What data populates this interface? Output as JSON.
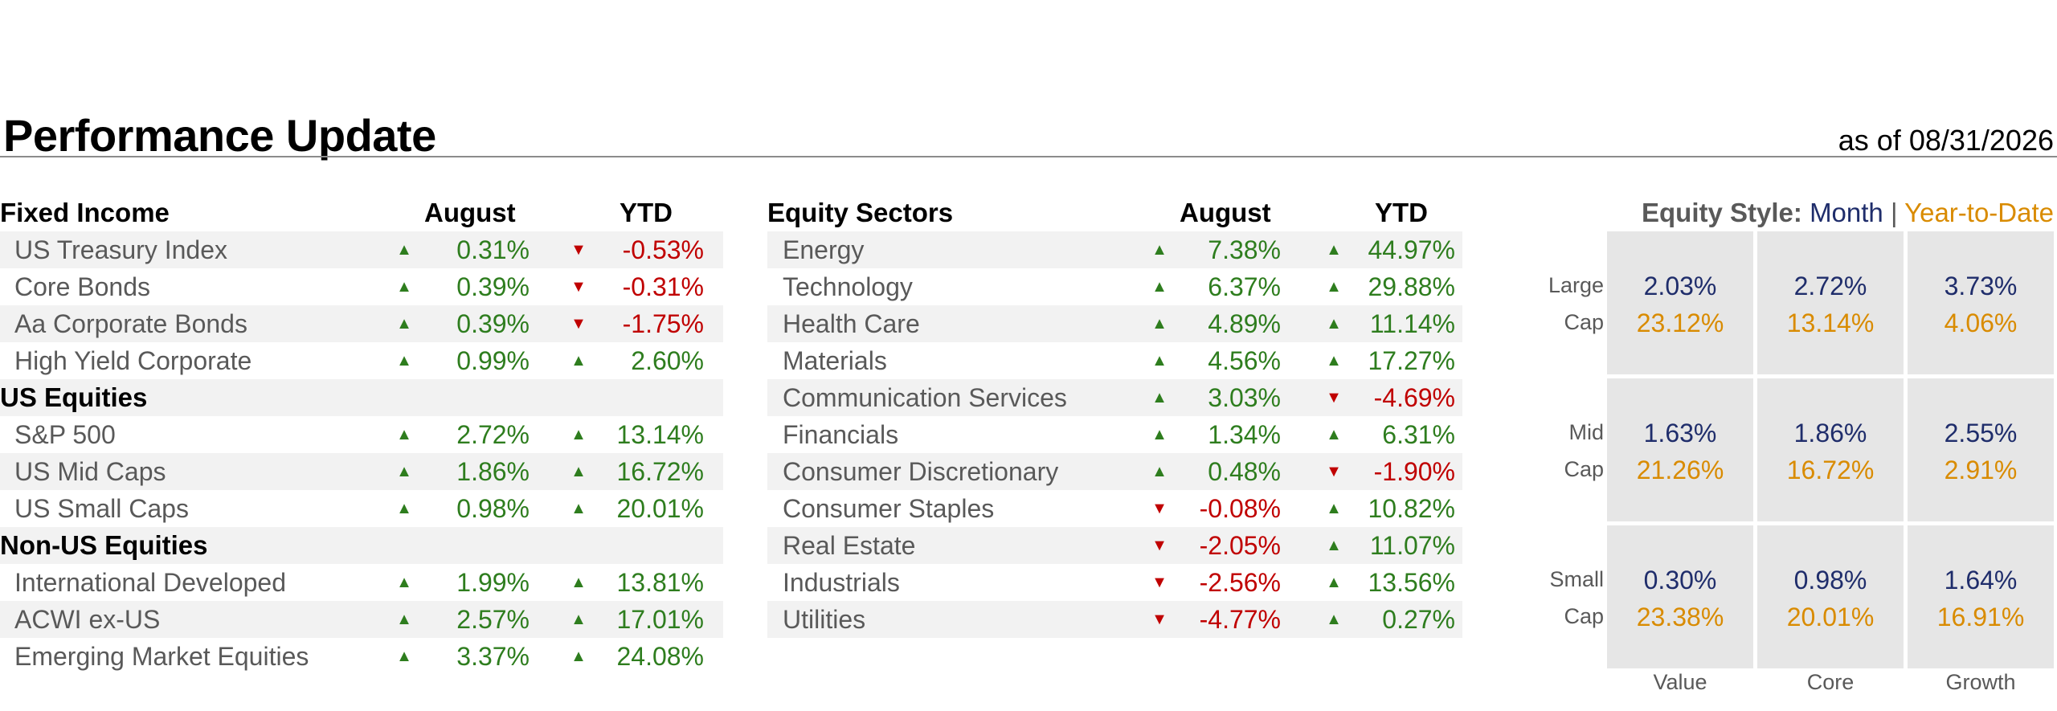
{
  "header": {
    "title": "Performance Update",
    "as_of": "as of 08/31/2026"
  },
  "fixed_income": {
    "title": "Fixed Income",
    "col_august": "August",
    "col_ytd": "YTD",
    "rows": [
      {
        "label": "US Treasury Index",
        "aug": "0.31%",
        "aug_dir": "▲",
        "ytd": "-0.53%",
        "ytd_dir": "▼"
      },
      {
        "label": "Core Bonds",
        "aug": "0.39%",
        "aug_dir": "▲",
        "ytd": "-0.31%",
        "ytd_dir": "▼"
      },
      {
        "label": "Aa Corporate Bonds",
        "aug": "0.39%",
        "aug_dir": "▲",
        "ytd": "-1.75%",
        "ytd_dir": "▼"
      },
      {
        "label": "High Yield Corporate",
        "aug": "0.99%",
        "aug_dir": "▲",
        "ytd": "2.60%",
        "ytd_dir": "▲"
      }
    ],
    "us_equities_title": "US Equities",
    "us_equities": [
      {
        "label": "S&P 500",
        "aug": "2.72%",
        "aug_dir": "▲",
        "ytd": "13.14%",
        "ytd_dir": "▲"
      },
      {
        "label": "US Mid Caps",
        "aug": "1.86%",
        "aug_dir": "▲",
        "ytd": "16.72%",
        "ytd_dir": "▲"
      },
      {
        "label": "US Small Caps",
        "aug": "0.98%",
        "aug_dir": "▲",
        "ytd": "20.01%",
        "ytd_dir": "▲"
      }
    ],
    "non_us_title": "Non-US Equities",
    "non_us": [
      {
        "label": "International Developed",
        "aug": "1.99%",
        "aug_dir": "▲",
        "ytd": "13.81%",
        "ytd_dir": "▲"
      },
      {
        "label": "ACWI ex-US",
        "aug": "2.57%",
        "aug_dir": "▲",
        "ytd": "17.01%",
        "ytd_dir": "▲"
      },
      {
        "label": "Emerging Market Equities",
        "aug": "3.37%",
        "aug_dir": "▲",
        "ytd": "24.08%",
        "ytd_dir": "▲"
      }
    ]
  },
  "equity_sectors": {
    "title": "Equity Sectors",
    "col_august": "August",
    "col_ytd": "YTD",
    "rows": [
      {
        "label": "Energy",
        "aug": "7.38%",
        "aug_dir": "▲",
        "ytd": "44.97%",
        "ytd_dir": "▲"
      },
      {
        "label": "Technology",
        "aug": "6.37%",
        "aug_dir": "▲",
        "ytd": "29.88%",
        "ytd_dir": "▲"
      },
      {
        "label": "Health Care",
        "aug": "4.89%",
        "aug_dir": "▲",
        "ytd": "11.14%",
        "ytd_dir": "▲"
      },
      {
        "label": "Materials",
        "aug": "4.56%",
        "aug_dir": "▲",
        "ytd": "17.27%",
        "ytd_dir": "▲"
      },
      {
        "label": "Communication Services",
        "aug": "3.03%",
        "aug_dir": "▲",
        "ytd": "-4.69%",
        "ytd_dir": "▼"
      },
      {
        "label": "Financials",
        "aug": "1.34%",
        "aug_dir": "▲",
        "ytd": "6.31%",
        "ytd_dir": "▲"
      },
      {
        "label": "Consumer Discretionary",
        "aug": "0.48%",
        "aug_dir": "▲",
        "ytd": "-1.90%",
        "ytd_dir": "▼"
      },
      {
        "label": "Consumer Staples",
        "aug": "-0.08%",
        "aug_dir": "▼",
        "ytd": "10.82%",
        "ytd_dir": "▲"
      },
      {
        "label": "Real Estate",
        "aug": "-2.05%",
        "aug_dir": "▼",
        "ytd": "11.07%",
        "ytd_dir": "▲"
      },
      {
        "label": "Industrials",
        "aug": "-2.56%",
        "aug_dir": "▼",
        "ytd": "13.56%",
        "ytd_dir": "▲"
      },
      {
        "label": "Utilities",
        "aug": "-4.77%",
        "aug_dir": "▼",
        "ytd": "0.27%",
        "ytd_dir": "▲"
      }
    ]
  },
  "equity_style": {
    "label": "Equity Style:",
    "month_label": "Month",
    "separator": "|",
    "ytd_label": "Year-to-Date",
    "row_labels": [
      {
        "top": "Large",
        "bottom": "Cap"
      },
      {
        "top": "Mid",
        "bottom": "Cap"
      },
      {
        "top": "Small",
        "bottom": "Cap"
      }
    ],
    "col_labels": [
      "Value",
      "Core",
      "Growth"
    ],
    "cells": [
      [
        {
          "month": "2.03%",
          "ytd": "23.12%"
        },
        {
          "month": "2.72%",
          "ytd": "13.14%"
        },
        {
          "month": "3.73%",
          "ytd": "4.06%"
        }
      ],
      [
        {
          "month": "1.63%",
          "ytd": "21.26%"
        },
        {
          "month": "1.86%",
          "ytd": "16.72%"
        },
        {
          "month": "2.55%",
          "ytd": "2.91%"
        }
      ],
      [
        {
          "month": "0.30%",
          "ytd": "23.38%"
        },
        {
          "month": "0.98%",
          "ytd": "20.01%"
        },
        {
          "month": "1.64%",
          "ytd": "16.91%"
        }
      ]
    ],
    "colors": {
      "month": "#1f2d6b",
      "ytd": "#d98b00",
      "up": "#2e7d1e",
      "down": "#c00000"
    }
  }
}
